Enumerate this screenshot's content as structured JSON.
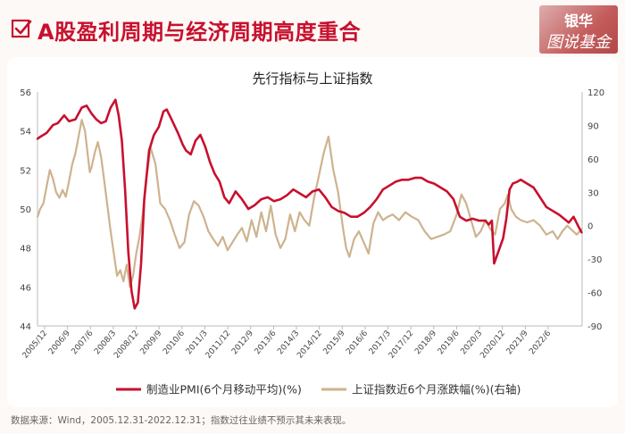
{
  "header": {
    "title": "A股盈利周期与经济周期高度重合",
    "logo_line1": "银华",
    "logo_line2": "图说基金"
  },
  "footer": {
    "source": "数据来源：Wind，2005.12.31-2022.12.31；指数过往业绩不预示其未来表现。"
  },
  "colors": {
    "pmi": "#c8102e",
    "index": "#cdb38f",
    "title": "#c8102e"
  },
  "chart_data": {
    "type": "line",
    "title": "先行指标与上证指数",
    "x_tick_labels": [
      "2005/12",
      "2006/9",
      "2007/6",
      "2008/3",
      "2008/12",
      "2009/9",
      "2010/6",
      "2011/3",
      "2011/12",
      "2012/9",
      "2013/6",
      "2014/3",
      "2014/12",
      "2015/9",
      "2016/6",
      "2017/3",
      "2017/12",
      "2018/9",
      "2019/6",
      "2020/3",
      "2020/12",
      "2021/9",
      "2022/6"
    ],
    "x_range": [
      2005.9167,
      2022.9167
    ],
    "ylim_left": [
      44,
      56
    ],
    "yticks_left": [
      "44",
      "46",
      "48",
      "50",
      "52",
      "54",
      "56"
    ],
    "ylim_right": [
      -90,
      120
    ],
    "yticks_right": [
      "-90",
      "-60",
      "-30",
      "0",
      "30",
      "60",
      "90",
      "120"
    ],
    "grid": false,
    "legend_position": "bottom",
    "series": [
      {
        "name": "制造业PMI(6个月移动平均)(%)",
        "axis": "left",
        "x": [
          2005.92,
          2006.0,
          2006.2,
          2006.4,
          2006.55,
          2006.75,
          2006.9,
          2007.1,
          2007.3,
          2007.45,
          2007.6,
          2007.75,
          2007.9,
          2008.05,
          2008.2,
          2008.35,
          2008.45,
          2008.55,
          2008.65,
          2008.75,
          2008.85,
          2008.95,
          2009.05,
          2009.15,
          2009.25,
          2009.4,
          2009.55,
          2009.7,
          2009.85,
          2009.95,
          2010.1,
          2010.3,
          2010.45,
          2010.55,
          2010.7,
          2010.85,
          2011.0,
          2011.15,
          2011.3,
          2011.45,
          2011.6,
          2011.75,
          2011.9,
          2012.1,
          2012.3,
          2012.5,
          2012.7,
          2012.9,
          2013.1,
          2013.3,
          2013.5,
          2013.7,
          2013.9,
          2014.1,
          2014.3,
          2014.5,
          2014.7,
          2014.9,
          2015.1,
          2015.3,
          2015.5,
          2015.7,
          2015.9,
          2016.1,
          2016.3,
          2016.5,
          2016.7,
          2016.9,
          2017.1,
          2017.3,
          2017.5,
          2017.7,
          2017.9,
          2018.1,
          2018.3,
          2018.5,
          2018.7,
          2018.9,
          2019.1,
          2019.3,
          2019.5,
          2019.7,
          2019.9,
          2020.0,
          2020.1,
          2020.17,
          2020.3,
          2020.45,
          2020.55,
          2020.65,
          2020.75,
          2020.9,
          2021.0,
          2021.2,
          2021.4,
          2021.6,
          2021.8,
          2022.0,
          2022.2,
          2022.35,
          2022.5,
          2022.65,
          2022.8,
          2022.9
        ],
        "values": [
          53.6,
          53.7,
          53.9,
          54.3,
          54.4,
          54.8,
          54.5,
          54.6,
          55.2,
          55.3,
          54.9,
          54.6,
          54.4,
          54.5,
          55.2,
          55.6,
          54.8,
          53.5,
          51.0,
          47.8,
          45.8,
          44.9,
          45.2,
          47.2,
          50.5,
          53.0,
          53.8,
          54.2,
          55.0,
          55.1,
          54.6,
          53.9,
          53.3,
          53.0,
          52.8,
          53.5,
          53.8,
          53.2,
          52.4,
          51.8,
          51.4,
          50.6,
          50.3,
          50.9,
          50.5,
          50.0,
          50.2,
          50.5,
          50.6,
          50.4,
          50.5,
          50.7,
          51.0,
          50.8,
          50.6,
          50.9,
          51.0,
          50.6,
          50.1,
          49.9,
          49.8,
          49.6,
          49.6,
          49.8,
          50.1,
          50.5,
          51.0,
          51.2,
          51.4,
          51.5,
          51.5,
          51.6,
          51.6,
          51.4,
          51.3,
          51.1,
          50.9,
          50.5,
          49.6,
          49.4,
          49.5,
          49.4,
          49.4,
          49.2,
          49.4,
          47.2,
          47.8,
          48.5,
          49.5,
          51.0,
          51.3,
          51.4,
          51.5,
          51.3,
          51.1,
          50.6,
          50.1,
          49.9,
          49.7,
          49.5,
          49.3,
          49.6,
          49.1,
          48.8
        ]
      },
      {
        "name": "上证指数近6个月涨跌幅(%)(右轴)",
        "axis": "right",
        "x": [
          2005.92,
          2006.0,
          2006.1,
          2006.2,
          2006.3,
          2006.4,
          2006.5,
          2006.6,
          2006.7,
          2006.8,
          2006.9,
          2007.0,
          2007.1,
          2007.2,
          2007.3,
          2007.4,
          2007.5,
          2007.55,
          2007.6,
          2007.7,
          2007.8,
          2007.9,
          2008.0,
          2008.1,
          2008.2,
          2008.3,
          2008.4,
          2008.5,
          2008.6,
          2008.7,
          2008.8,
          2008.9,
          2009.0,
          2009.1,
          2009.2,
          2009.3,
          2009.45,
          2009.6,
          2009.75,
          2009.9,
          2010.05,
          2010.2,
          2010.35,
          2010.5,
          2010.65,
          2010.8,
          2010.95,
          2011.1,
          2011.25,
          2011.4,
          2011.55,
          2011.7,
          2011.85,
          2012.0,
          2012.15,
          2012.3,
          2012.45,
          2012.6,
          2012.75,
          2012.9,
          2013.05,
          2013.2,
          2013.35,
          2013.5,
          2013.65,
          2013.8,
          2013.95,
          2014.1,
          2014.25,
          2014.4,
          2014.55,
          2014.7,
          2014.85,
          2015.0,
          2015.15,
          2015.3,
          2015.45,
          2015.55,
          2015.65,
          2015.8,
          2015.95,
          2016.1,
          2016.25,
          2016.4,
          2016.55,
          2016.7,
          2016.85,
          2017.0,
          2017.2,
          2017.4,
          2017.6,
          2017.8,
          2018.0,
          2018.2,
          2018.4,
          2018.6,
          2018.8,
          2019.0,
          2019.15,
          2019.3,
          2019.45,
          2019.6,
          2019.75,
          2019.9,
          2020.05,
          2020.2,
          2020.35,
          2020.5,
          2020.6,
          2020.7,
          2020.85,
          2021.0,
          2021.2,
          2021.4,
          2021.6,
          2021.8,
          2022.0,
          2022.15,
          2022.3,
          2022.45,
          2022.6,
          2022.75,
          2022.9
        ],
        "values": [
          8,
          15,
          20,
          35,
          50,
          42,
          30,
          25,
          32,
          26,
          40,
          55,
          65,
          80,
          95,
          85,
          60,
          48,
          52,
          65,
          75,
          62,
          40,
          18,
          -5,
          -25,
          -45,
          -40,
          -50,
          -35,
          -55,
          -45,
          -25,
          -10,
          10,
          40,
          70,
          55,
          20,
          15,
          5,
          -8,
          -20,
          -15,
          10,
          22,
          18,
          8,
          -5,
          -12,
          -18,
          -10,
          -22,
          -15,
          -8,
          -2,
          -14,
          5,
          -10,
          12,
          -5,
          18,
          -8,
          -20,
          -12,
          10,
          -5,
          12,
          5,
          0,
          25,
          45,
          65,
          80,
          50,
          30,
          -2,
          -20,
          -28,
          -12,
          -5,
          -15,
          -25,
          2,
          12,
          5,
          8,
          10,
          5,
          12,
          8,
          5,
          -5,
          -12,
          -10,
          -8,
          -5,
          10,
          28,
          20,
          5,
          -10,
          -5,
          5,
          -3,
          -8,
          15,
          20,
          28,
          15,
          8,
          5,
          3,
          5,
          0,
          -8,
          -5,
          -12,
          -5,
          0,
          -4,
          -8,
          -3
        ]
      }
    ]
  }
}
